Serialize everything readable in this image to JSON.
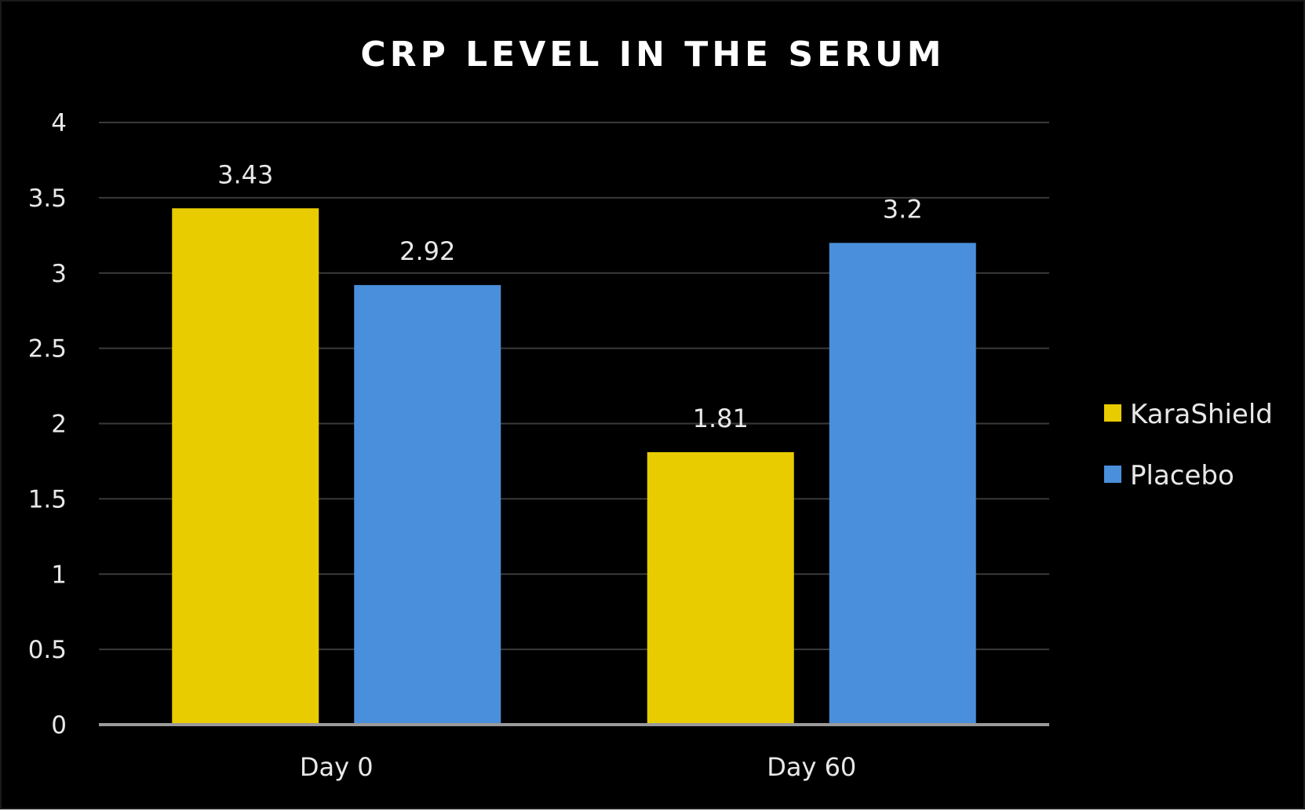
{
  "colors": {
    "background": "#000000",
    "gridline": "#3a3a3a",
    "axis": "#9a9a9a",
    "text": "#e8e8e8",
    "title": "#ffffff"
  },
  "chart_data": {
    "type": "bar",
    "title": "CRP LEVEL IN THE SERUM",
    "xlabel": "",
    "ylabel": "",
    "categories": [
      "Day 0",
      "Day 60"
    ],
    "series": [
      {
        "name": "KaraShield",
        "color": "#E8CC00",
        "values": [
          3.43,
          1.81
        ],
        "labels": [
          "3.43",
          "1.81"
        ]
      },
      {
        "name": "Placebo",
        "color": "#4A8FDB",
        "values": [
          2.92,
          3.2
        ],
        "labels": [
          "2.92",
          "3.2"
        ]
      }
    ],
    "ylim": [
      0,
      4
    ],
    "yticks": [
      0,
      0.5,
      1,
      1.5,
      2,
      2.5,
      3,
      3.5,
      4
    ],
    "ytick_labels": [
      "0",
      "0.5",
      "1",
      "1.5",
      "2",
      "2.5",
      "3",
      "3.5",
      "4"
    ],
    "grid": true,
    "legend_position": "right",
    "data_labels": true
  }
}
